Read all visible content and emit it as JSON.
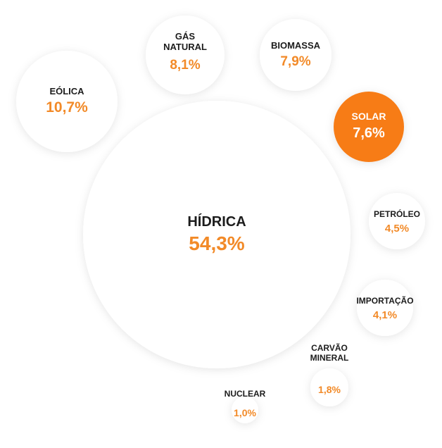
{
  "chart_data": {
    "type": "bubble",
    "title": "",
    "unit": "%",
    "colors": {
      "label": "#1c1c1c",
      "value": "#f28a28",
      "highlight_fill": "#f77b16",
      "highlight_text": "#ffffff",
      "bubble_fill": "#ffffff"
    },
    "items": [
      {
        "name": "HÍDRICA",
        "value_label": "54,3%",
        "value": 54.3,
        "highlight": false
      },
      {
        "name": "EÓLICA",
        "value_label": "10,7%",
        "value": 10.7,
        "highlight": false
      },
      {
        "name": "GÁS NATURAL",
        "value_label": "8,1%",
        "value": 8.1,
        "highlight": false
      },
      {
        "name": "BIOMASSA",
        "value_label": "7,9%",
        "value": 7.9,
        "highlight": false
      },
      {
        "name": "SOLAR",
        "value_label": "7,6%",
        "value": 7.6,
        "highlight": true
      },
      {
        "name": "PETRÓLEO",
        "value_label": "4,5%",
        "value": 4.5,
        "highlight": false
      },
      {
        "name": "IMPORTAÇÃO",
        "value_label": "4,1%",
        "value": 4.1,
        "highlight": false
      },
      {
        "name": "CARVÃO MINERAL",
        "value_label": "1,8%",
        "value": 1.8,
        "highlight": false
      },
      {
        "name": "NUCLEAR",
        "value_label": "1,0%",
        "value": 1.0,
        "highlight": false
      }
    ]
  }
}
